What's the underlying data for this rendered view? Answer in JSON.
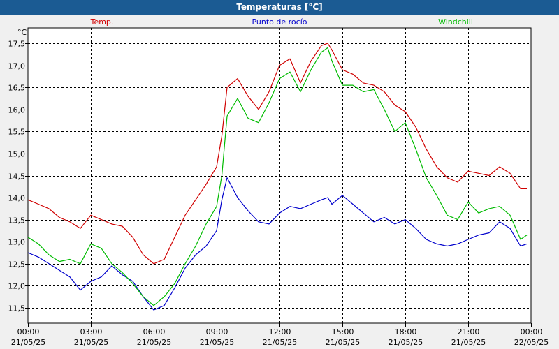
{
  "window": {
    "title": "Temperaturas [°C]"
  },
  "chart_data": {
    "type": "line",
    "title": "Temperaturas [°C]",
    "ylabel": "°C",
    "xlabel": "",
    "ylim": [
      11.15,
      17.85
    ],
    "xlim": [
      0,
      24
    ],
    "grid": true,
    "yticks": [
      "11,5",
      "12,0",
      "12,5",
      "13,0",
      "13,5",
      "14,0",
      "14,5",
      "15,0",
      "15,5",
      "16,0",
      "16,5",
      "17,0",
      "17,5"
    ],
    "ytick_values": [
      11.5,
      12.0,
      12.5,
      13.0,
      13.5,
      14.0,
      14.5,
      15.0,
      15.5,
      16.0,
      16.5,
      17.0,
      17.5
    ],
    "xticks": [
      {
        "time": "00:00",
        "date": "21/05/25"
      },
      {
        "time": "03:00",
        "date": "21/05/25"
      },
      {
        "time": "06:00",
        "date": "21/05/25"
      },
      {
        "time": "09:00",
        "date": "21/05/25"
      },
      {
        "time": "12:00",
        "date": "21/05/25"
      },
      {
        "time": "15:00",
        "date": "21/05/25"
      },
      {
        "time": "18:00",
        "date": "21/05/25"
      },
      {
        "time": "21:00",
        "date": "21/05/25"
      },
      {
        "time": "00:00",
        "date": "22/05/25"
      }
    ],
    "legend": [
      "Temp.",
      "Punto de rocío",
      "Windchill"
    ],
    "series": [
      {
        "name": "Temp.",
        "color": "#d00000",
        "x": [
          0,
          0.5,
          1,
          1.5,
          2,
          2.5,
          3,
          3.5,
          4,
          4.5,
          5,
          5.5,
          6,
          6.5,
          7,
          7.5,
          8,
          8.5,
          9,
          9.25,
          9.5,
          10,
          10.5,
          11,
          11.5,
          12,
          12.5,
          13,
          13.5,
          14,
          14.3,
          14.5,
          15,
          15.5,
          16,
          16.5,
          17,
          17.5,
          18,
          18.5,
          19,
          19.5,
          20,
          20.5,
          21,
          21.5,
          22,
          22.5,
          23,
          23.5,
          23.8
        ],
        "values": [
          13.95,
          13.85,
          13.75,
          13.55,
          13.45,
          13.3,
          13.6,
          13.5,
          13.4,
          13.35,
          13.1,
          12.7,
          12.5,
          12.6,
          13.1,
          13.6,
          13.95,
          14.3,
          14.7,
          15.4,
          16.5,
          16.7,
          16.3,
          16.0,
          16.4,
          17.0,
          17.15,
          16.6,
          17.1,
          17.45,
          17.5,
          17.35,
          16.9,
          16.8,
          16.6,
          16.55,
          16.4,
          16.1,
          15.95,
          15.6,
          15.1,
          14.7,
          14.45,
          14.35,
          14.6,
          14.55,
          14.5,
          14.7,
          14.55,
          14.2,
          14.2
        ]
      },
      {
        "name": "Punto de rocío",
        "color": "#0000cc",
        "x": [
          0,
          0.5,
          1,
          1.5,
          2,
          2.5,
          3,
          3.5,
          4,
          4.5,
          5,
          5.5,
          6,
          6.5,
          7,
          7.5,
          8,
          8.5,
          9,
          9.25,
          9.5,
          10,
          10.5,
          11,
          11.5,
          12,
          12.5,
          13,
          13.5,
          14,
          14.3,
          14.5,
          15,
          15.5,
          16,
          16.5,
          17,
          17.5,
          18,
          18.5,
          19,
          19.5,
          20,
          20.5,
          21,
          21.5,
          22,
          22.5,
          23,
          23.5,
          23.8
        ],
        "values": [
          12.75,
          12.65,
          12.5,
          12.35,
          12.2,
          11.9,
          12.1,
          12.2,
          12.45,
          12.25,
          12.1,
          11.75,
          11.45,
          11.55,
          11.95,
          12.4,
          12.7,
          12.9,
          13.25,
          13.95,
          14.45,
          14.0,
          13.7,
          13.45,
          13.4,
          13.65,
          13.8,
          13.75,
          13.85,
          13.95,
          14.0,
          13.85,
          14.05,
          13.85,
          13.65,
          13.45,
          13.55,
          13.4,
          13.5,
          13.3,
          13.05,
          12.95,
          12.9,
          12.95,
          13.05,
          13.15,
          13.2,
          13.45,
          13.3,
          12.9,
          12.95
        ]
      },
      {
        "name": "Windchill",
        "color": "#00bb00",
        "x": [
          0,
          0.5,
          1,
          1.5,
          2,
          2.5,
          3,
          3.5,
          4,
          4.5,
          5,
          5.5,
          6,
          6.5,
          7,
          7.5,
          8,
          8.5,
          9,
          9.25,
          9.5,
          10,
          10.5,
          11,
          11.5,
          12,
          12.5,
          13,
          13.5,
          14,
          14.3,
          14.5,
          15,
          15.5,
          16,
          16.5,
          17,
          17.5,
          18,
          18.5,
          19,
          19.5,
          20,
          20.5,
          21,
          21.5,
          22,
          22.5,
          23,
          23.5,
          23.8
        ],
        "values": [
          13.1,
          12.95,
          12.7,
          12.55,
          12.6,
          12.5,
          12.95,
          12.85,
          12.5,
          12.3,
          12.05,
          11.75,
          11.55,
          11.75,
          12.05,
          12.5,
          12.9,
          13.4,
          13.8,
          14.5,
          15.85,
          16.25,
          15.8,
          15.7,
          16.15,
          16.7,
          16.85,
          16.4,
          16.9,
          17.3,
          17.4,
          17.1,
          16.55,
          16.55,
          16.4,
          16.45,
          16.0,
          15.5,
          15.7,
          15.1,
          14.45,
          14.05,
          13.6,
          13.5,
          13.9,
          13.65,
          13.75,
          13.8,
          13.6,
          13.05,
          13.15
        ]
      }
    ]
  }
}
